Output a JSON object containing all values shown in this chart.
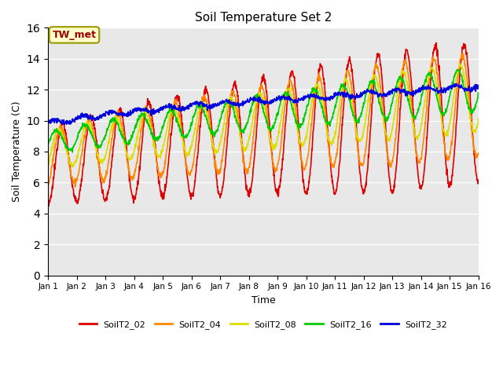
{
  "title": "Soil Temperature Set 2",
  "xlabel": "Time",
  "ylabel": "Soil Temperature (C)",
  "ylim": [
    0,
    16
  ],
  "yticks": [
    0,
    2,
    4,
    6,
    8,
    10,
    12,
    14,
    16
  ],
  "xtick_labels": [
    "Jan 1",
    "Jan 2",
    "Jan 3",
    "Jan 4",
    "Jan 5",
    "Jan 6",
    "Jan 7",
    "Jan 8",
    "Jan 9",
    "Jan 10",
    "Jan 11",
    "Jan 12",
    "Jan 13",
    "Jan 14",
    "Jan 15",
    "Jan 16"
  ],
  "annotation_text": "TW_met",
  "annotation_color": "#990000",
  "annotation_bg": "#ffffcc",
  "annotation_border": "#999900",
  "series_colors": {
    "SoilT2_02": "#dd0000",
    "SoilT2_04": "#ff8800",
    "SoilT2_08": "#dddd00",
    "SoilT2_16": "#00cc00",
    "SoilT2_32": "#0000dd"
  },
  "bg_color": "#e8e8e8",
  "plot_bg": "#e8e8e8",
  "below_plot_bg": "#f0f0f0",
  "linewidth": 1.2,
  "n_points": 1440,
  "n_days": 15
}
